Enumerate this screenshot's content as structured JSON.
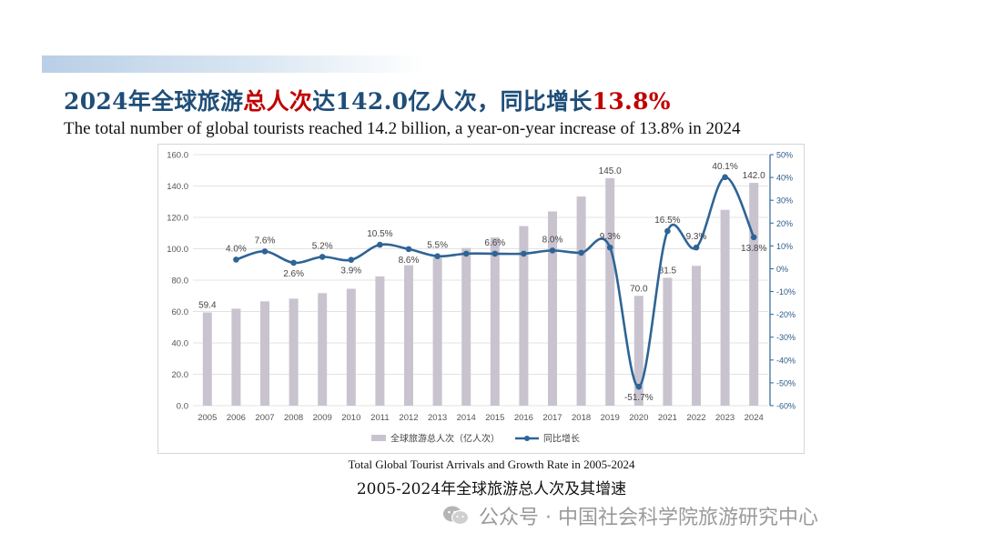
{
  "header": {
    "title_cn_1": "2024年全球旅游",
    "title_cn_2": "总人次",
    "title_cn_3": "达142.0亿人次，同比增长",
    "title_cn_4": "13.8%",
    "title_en": "The total number of global tourists reached 14.2 billion, a year-on-year increase of 13.8% in 2024"
  },
  "colors": {
    "bar": "#c9c3cf",
    "line": "#2e6496",
    "title": "#1f4e79",
    "highlight": "#c00000"
  },
  "chart_data": {
    "type": "bar",
    "categories": [
      "2005",
      "2006",
      "2007",
      "2008",
      "2009",
      "2010",
      "2011",
      "2012",
      "2013",
      "2014",
      "2015",
      "2016",
      "2017",
      "2018",
      "2019",
      "2020",
      "2021",
      "2022",
      "2023",
      "2024"
    ],
    "series": [
      {
        "name": "全球旅游总人次（亿人次）",
        "type": "bar",
        "axis": "left",
        "values": [
          59.4,
          61.8,
          66.5,
          68.2,
          71.7,
          74.5,
          82.4,
          89.5,
          94.4,
          100.5,
          107.2,
          114.5,
          123.8,
          133.3,
          145.0,
          70.0,
          81.5,
          89.1,
          124.8,
          142.0
        ]
      },
      {
        "name": "同比增长",
        "type": "line",
        "axis": "right",
        "values": [
          null,
          4.0,
          7.6,
          2.6,
          5.2,
          3.9,
          10.5,
          8.6,
          5.5,
          6.6,
          6.6,
          6.6,
          8.0,
          7.0,
          9.3,
          -51.7,
          16.5,
          9.3,
          40.1,
          13.8
        ]
      }
    ],
    "bar_labels": [
      {
        "i": 0,
        "text": "59.4"
      },
      {
        "i": 14,
        "text": "145.0"
      },
      {
        "i": 15,
        "text": "70.0"
      },
      {
        "i": 16,
        "text": "81.5"
      },
      {
        "i": 19,
        "text": "142.0"
      }
    ],
    "line_labels": [
      {
        "i": 1,
        "text": "4.0%"
      },
      {
        "i": 2,
        "text": "7.6%"
      },
      {
        "i": 3,
        "text": "2.6%"
      },
      {
        "i": 4,
        "text": "5.2%"
      },
      {
        "i": 5,
        "text": "3.9%"
      },
      {
        "i": 6,
        "text": "10.5%"
      },
      {
        "i": 7,
        "text": "8.6%"
      },
      {
        "i": 8,
        "text": "5.5%"
      },
      {
        "i": 10,
        "text": "6.6%"
      },
      {
        "i": 12,
        "text": "8.0%"
      },
      {
        "i": 14,
        "text": "9.3%"
      },
      {
        "i": 15,
        "text": "-51.7%"
      },
      {
        "i": 16,
        "text": "16.5%"
      },
      {
        "i": 17,
        "text": "9.3%"
      },
      {
        "i": 18,
        "text": "40.1%"
      },
      {
        "i": 19,
        "text": "13.8%"
      }
    ],
    "y_left": {
      "min": 0,
      "max": 160,
      "ticks": [
        "0.0",
        "20.0",
        "40.0",
        "60.0",
        "80.0",
        "100.0",
        "120.0",
        "140.0",
        "160.0"
      ]
    },
    "y_right": {
      "min": -60,
      "max": 50,
      "ticks": [
        "-60%",
        "-50%",
        "-40%",
        "-30%",
        "-20%",
        "-10%",
        "0%",
        "10%",
        "20%",
        "30%",
        "40%",
        "50%"
      ]
    },
    "grid": true,
    "legend_position": "bottom",
    "legend": [
      "全球旅游总人次（亿人次）",
      "同比增长"
    ]
  },
  "caption": {
    "en": "Total Global Tourist Arrivals and Growth Rate in 2005-2024",
    "cn": "2005-2024年全球旅游总人次及其增速"
  },
  "watermark": {
    "text": "公众号 · 中国社会科学院旅游研究中心"
  }
}
